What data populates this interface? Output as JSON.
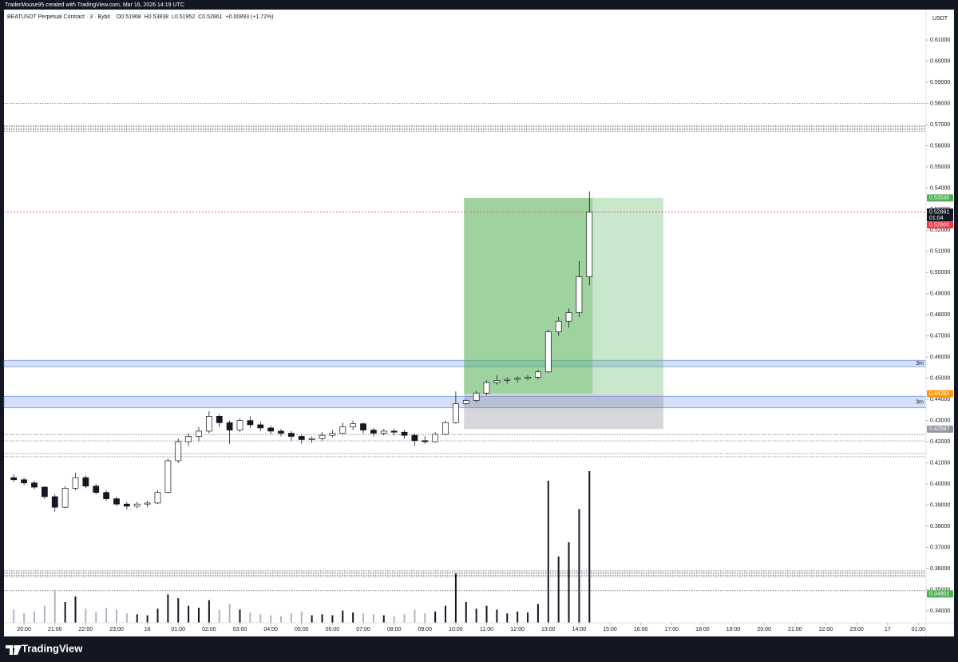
{
  "header": {
    "credit": "TraderMouse95 created with TradingView.com, Mar 16, 2026 14:19 UTC"
  },
  "footer": {
    "brand": "TradingView"
  },
  "chart_data": {
    "type": "candlestick",
    "title": "BEATUSDT Perpetual Contract · 3 · Bybit",
    "ohlc_text": [
      "O0.51968",
      "H0.53838",
      "L0.51952",
      "C0.52861",
      "+0.00893 (+1.72%)"
    ],
    "currency": "USDT",
    "up_color": "#ffffff",
    "down_color": "#131722",
    "volume_up_color": "#131722",
    "volume_down_color": "#b2b5be",
    "grid": false,
    "xlim": [
      -39,
      1755
    ],
    "ylim": [
      0.3343,
      0.6244
    ],
    "xticks": [
      {
        "value": 0,
        "label": "20:00"
      },
      {
        "value": 60,
        "label": "21:00"
      },
      {
        "value": 120,
        "label": "22:00"
      },
      {
        "value": 180,
        "label": "23:00"
      },
      {
        "value": 240,
        "label": "16"
      },
      {
        "value": 300,
        "label": "01:00"
      },
      {
        "value": 360,
        "label": "02:00"
      },
      {
        "value": 420,
        "label": "03:00"
      },
      {
        "value": 480,
        "label": "04:00"
      },
      {
        "value": 540,
        "label": "05:00"
      },
      {
        "value": 600,
        "label": "06:00"
      },
      {
        "value": 660,
        "label": "07:00"
      },
      {
        "value": 720,
        "label": "08:00"
      },
      {
        "value": 780,
        "label": "09:00"
      },
      {
        "value": 840,
        "label": "10:00"
      },
      {
        "value": 900,
        "label": "11:00"
      },
      {
        "value": 960,
        "label": "12:00"
      },
      {
        "value": 1020,
        "label": "13:00"
      },
      {
        "value": 1080,
        "label": "14:00"
      },
      {
        "value": 1140,
        "label": "15:00"
      },
      {
        "value": 1200,
        "label": "16:00"
      },
      {
        "value": 1260,
        "label": "17:00"
      },
      {
        "value": 1320,
        "label": "18:00"
      },
      {
        "value": 1380,
        "label": "19:00"
      },
      {
        "value": 1440,
        "label": "20:00"
      },
      {
        "value": 1500,
        "label": "21:00"
      },
      {
        "value": 1560,
        "label": "22:00"
      },
      {
        "value": 1620,
        "label": "23:00"
      },
      {
        "value": 1680,
        "label": "17"
      },
      {
        "value": 1740,
        "label": "01:00"
      }
    ],
    "yticks": [
      {
        "value": 0.34,
        "label": "0.34000"
      },
      {
        "value": 0.35,
        "label": "0.35000"
      },
      {
        "value": 0.36,
        "label": "0.36000"
      },
      {
        "value": 0.37,
        "label": "0.37000"
      },
      {
        "value": 0.38,
        "label": "0.38000"
      },
      {
        "value": 0.39,
        "label": "0.39000"
      },
      {
        "value": 0.4,
        "label": "0.40000"
      },
      {
        "value": 0.41,
        "label": "0.41000"
      },
      {
        "value": 0.42,
        "label": "0.42000"
      },
      {
        "value": 0.43,
        "label": "0.43000"
      },
      {
        "value": 0.44,
        "label": "0.44000"
      },
      {
        "value": 0.45,
        "label": "0.45000"
      },
      {
        "value": 0.46,
        "label": "0.46000"
      },
      {
        "value": 0.47,
        "label": "0.47000"
      },
      {
        "value": 0.48,
        "label": "0.48000"
      },
      {
        "value": 0.49,
        "label": "0.49000"
      },
      {
        "value": 0.5,
        "label": "0.50000"
      },
      {
        "value": 0.51,
        "label": "0.51000"
      },
      {
        "value": 0.52,
        "label": "0.52000"
      },
      {
        "value": 0.53,
        "label": "0.53000"
      },
      {
        "value": 0.54,
        "label": "0.54000"
      },
      {
        "value": 0.55,
        "label": "0.55000"
      },
      {
        "value": 0.56,
        "label": "0.56000"
      },
      {
        "value": 0.57,
        "label": "0.57000"
      },
      {
        "value": 0.58,
        "label": "0.58000"
      },
      {
        "value": 0.59,
        "label": "0.59000"
      },
      {
        "value": 0.6,
        "label": "0.60000"
      },
      {
        "value": 0.61,
        "label": "0.61000"
      }
    ],
    "candles": [
      {
        "x": -20,
        "o": 0.403,
        "h": 0.4045,
        "l": 0.401,
        "c": 0.402,
        "v": 14
      },
      {
        "x": 0,
        "o": 0.402,
        "h": 0.403,
        "l": 0.3995,
        "c": 0.4005,
        "v": 10
      },
      {
        "x": 20,
        "o": 0.4005,
        "h": 0.4015,
        "l": 0.3975,
        "c": 0.3985,
        "v": 12
      },
      {
        "x": 40,
        "o": 0.3985,
        "h": 0.399,
        "l": 0.393,
        "c": 0.394,
        "v": 18
      },
      {
        "x": 60,
        "o": 0.394,
        "h": 0.395,
        "l": 0.387,
        "c": 0.389,
        "v": 35
      },
      {
        "x": 80,
        "o": 0.389,
        "h": 0.399,
        "l": 0.3885,
        "c": 0.398,
        "v": 22
      },
      {
        "x": 100,
        "o": 0.398,
        "h": 0.4053,
        "l": 0.397,
        "c": 0.403,
        "v": 28
      },
      {
        "x": 120,
        "o": 0.403,
        "h": 0.404,
        "l": 0.398,
        "c": 0.399,
        "v": 15
      },
      {
        "x": 140,
        "o": 0.399,
        "h": 0.4,
        "l": 0.395,
        "c": 0.396,
        "v": 12
      },
      {
        "x": 160,
        "o": 0.396,
        "h": 0.397,
        "l": 0.392,
        "c": 0.393,
        "v": 16
      },
      {
        "x": 180,
        "o": 0.393,
        "h": 0.394,
        "l": 0.3895,
        "c": 0.3905,
        "v": 14
      },
      {
        "x": 200,
        "o": 0.3905,
        "h": 0.3915,
        "l": 0.388,
        "c": 0.3895,
        "v": 10
      },
      {
        "x": 220,
        "o": 0.3895,
        "h": 0.3915,
        "l": 0.3885,
        "c": 0.3905,
        "v": 9
      },
      {
        "x": 240,
        "o": 0.3905,
        "h": 0.392,
        "l": 0.389,
        "c": 0.391,
        "v": 8
      },
      {
        "x": 260,
        "o": 0.391,
        "h": 0.397,
        "l": 0.3905,
        "c": 0.396,
        "v": 15
      },
      {
        "x": 280,
        "o": 0.396,
        "h": 0.412,
        "l": 0.3955,
        "c": 0.411,
        "v": 30
      },
      {
        "x": 300,
        "o": 0.411,
        "h": 0.4215,
        "l": 0.41,
        "c": 0.42,
        "v": 26
      },
      {
        "x": 320,
        "o": 0.42,
        "h": 0.424,
        "l": 0.418,
        "c": 0.4225,
        "v": 18
      },
      {
        "x": 340,
        "o": 0.4225,
        "h": 0.427,
        "l": 0.42,
        "c": 0.425,
        "v": 16
      },
      {
        "x": 360,
        "o": 0.425,
        "h": 0.4344,
        "l": 0.424,
        "c": 0.432,
        "v": 24
      },
      {
        "x": 380,
        "o": 0.432,
        "h": 0.433,
        "l": 0.427,
        "c": 0.429,
        "v": 14
      },
      {
        "x": 400,
        "o": 0.429,
        "h": 0.43,
        "l": 0.419,
        "c": 0.4255,
        "v": 20
      },
      {
        "x": 420,
        "o": 0.4255,
        "h": 0.431,
        "l": 0.4245,
        "c": 0.43,
        "v": 14
      },
      {
        "x": 440,
        "o": 0.43,
        "h": 0.432,
        "l": 0.4265,
        "c": 0.428,
        "v": 11
      },
      {
        "x": 460,
        "o": 0.428,
        "h": 0.4295,
        "l": 0.425,
        "c": 0.4265,
        "v": 9
      },
      {
        "x": 480,
        "o": 0.4265,
        "h": 0.4275,
        "l": 0.4235,
        "c": 0.425,
        "v": 8
      },
      {
        "x": 500,
        "o": 0.425,
        "h": 0.426,
        "l": 0.4225,
        "c": 0.424,
        "v": 7
      },
      {
        "x": 520,
        "o": 0.424,
        "h": 0.425,
        "l": 0.4205,
        "c": 0.4225,
        "v": 10
      },
      {
        "x": 540,
        "o": 0.4225,
        "h": 0.4235,
        "l": 0.419,
        "c": 0.421,
        "v": 12
      },
      {
        "x": 560,
        "o": 0.421,
        "h": 0.4225,
        "l": 0.4195,
        "c": 0.4215,
        "v": 8
      },
      {
        "x": 580,
        "o": 0.4215,
        "h": 0.4245,
        "l": 0.4205,
        "c": 0.423,
        "v": 9
      },
      {
        "x": 600,
        "o": 0.423,
        "h": 0.4255,
        "l": 0.422,
        "c": 0.424,
        "v": 8
      },
      {
        "x": 620,
        "o": 0.424,
        "h": 0.429,
        "l": 0.4235,
        "c": 0.427,
        "v": 13
      },
      {
        "x": 640,
        "o": 0.427,
        "h": 0.43,
        "l": 0.4255,
        "c": 0.4285,
        "v": 11
      },
      {
        "x": 660,
        "o": 0.4285,
        "h": 0.429,
        "l": 0.424,
        "c": 0.4255,
        "v": 10
      },
      {
        "x": 680,
        "o": 0.4255,
        "h": 0.4265,
        "l": 0.4225,
        "c": 0.424,
        "v": 9
      },
      {
        "x": 700,
        "o": 0.424,
        "h": 0.426,
        "l": 0.423,
        "c": 0.425,
        "v": 8
      },
      {
        "x": 720,
        "o": 0.425,
        "h": 0.426,
        "l": 0.423,
        "c": 0.4245,
        "v": 7
      },
      {
        "x": 740,
        "o": 0.4245,
        "h": 0.4255,
        "l": 0.4215,
        "c": 0.423,
        "v": 9
      },
      {
        "x": 760,
        "o": 0.423,
        "h": 0.424,
        "l": 0.418,
        "c": 0.4205,
        "v": 14
      },
      {
        "x": 780,
        "o": 0.4205,
        "h": 0.4225,
        "l": 0.419,
        "c": 0.42,
        "v": 10
      },
      {
        "x": 800,
        "o": 0.42,
        "h": 0.4245,
        "l": 0.4195,
        "c": 0.4235,
        "v": 12
      },
      {
        "x": 820,
        "o": 0.4235,
        "h": 0.43,
        "l": 0.423,
        "c": 0.429,
        "v": 18
      },
      {
        "x": 840,
        "o": 0.429,
        "h": 0.4438,
        "l": 0.4285,
        "c": 0.438,
        "v": 52
      },
      {
        "x": 860,
        "o": 0.438,
        "h": 0.44,
        "l": 0.4375,
        "c": 0.4395,
        "v": 22
      },
      {
        "x": 880,
        "o": 0.4395,
        "h": 0.444,
        "l": 0.4385,
        "c": 0.443,
        "v": 15
      },
      {
        "x": 900,
        "o": 0.443,
        "h": 0.449,
        "l": 0.442,
        "c": 0.448,
        "v": 18
      },
      {
        "x": 920,
        "o": 0.448,
        "h": 0.4515,
        "l": 0.447,
        "c": 0.449,
        "v": 14
      },
      {
        "x": 940,
        "o": 0.449,
        "h": 0.4505,
        "l": 0.4475,
        "c": 0.4495,
        "v": 10
      },
      {
        "x": 960,
        "o": 0.4495,
        "h": 0.451,
        "l": 0.448,
        "c": 0.45,
        "v": 12
      },
      {
        "x": 980,
        "o": 0.45,
        "h": 0.4515,
        "l": 0.449,
        "c": 0.4505,
        "v": 11
      },
      {
        "x": 1000,
        "o": 0.4505,
        "h": 0.454,
        "l": 0.4495,
        "c": 0.453,
        "v": 20
      },
      {
        "x": 1020,
        "o": 0.453,
        "h": 0.473,
        "l": 0.4525,
        "c": 0.472,
        "v": 150
      },
      {
        "x": 1040,
        "o": 0.472,
        "h": 0.479,
        "l": 0.47,
        "c": 0.477,
        "v": 70
      },
      {
        "x": 1060,
        "o": 0.477,
        "h": 0.483,
        "l": 0.474,
        "c": 0.481,
        "v": 85
      },
      {
        "x": 1080,
        "o": 0.481,
        "h": 0.5055,
        "l": 0.479,
        "c": 0.498,
        "v": 120
      },
      {
        "x": 1100,
        "o": 0.498,
        "h": 0.5384,
        "l": 0.494,
        "c": 0.5286,
        "v": 160
      }
    ],
    "horizontal_lines": [
      0.58,
      0.5696,
      0.569,
      0.5683,
      0.5676,
      0.5669,
      0.4234,
      0.4204,
      0.4144,
      0.4129,
      0.3589,
      0.3582,
      0.3575,
      0.3568,
      0.3562,
      0.3495
    ],
    "line_color": "#5d606b",
    "zones": [
      {
        "top": 0.4585,
        "bottom": 0.4555,
        "label": "3m"
      },
      {
        "top": 0.4415,
        "bottom": 0.436,
        "label": "3m"
      }
    ],
    "zone_color": "#d1dcf7",
    "zone_border": "#4f7ee8",
    "position": {
      "start": 856,
      "end": 1244,
      "entry": 0.44268,
      "target": 0.5353,
      "stop": 0.42597
    },
    "last_price_color": "#f23645",
    "price_tags": [
      {
        "value": 0.5353,
        "label": "0.53530",
        "color": "#4caf50"
      },
      {
        "value": 0.52861,
        "label": "0.52861",
        "sub": "01:04",
        "color": "#131722"
      },
      {
        "value": 0.528,
        "label": "0.52800",
        "color": "#f23645"
      },
      {
        "value": 0.44268,
        "label": "0.44268",
        "color": "#ff9800"
      },
      {
        "value": 0.42597,
        "label": "0.42597",
        "color": "#9598a1"
      },
      {
        "value": 0.34801,
        "label": "0.34801",
        "color": "#4caf50"
      }
    ]
  }
}
